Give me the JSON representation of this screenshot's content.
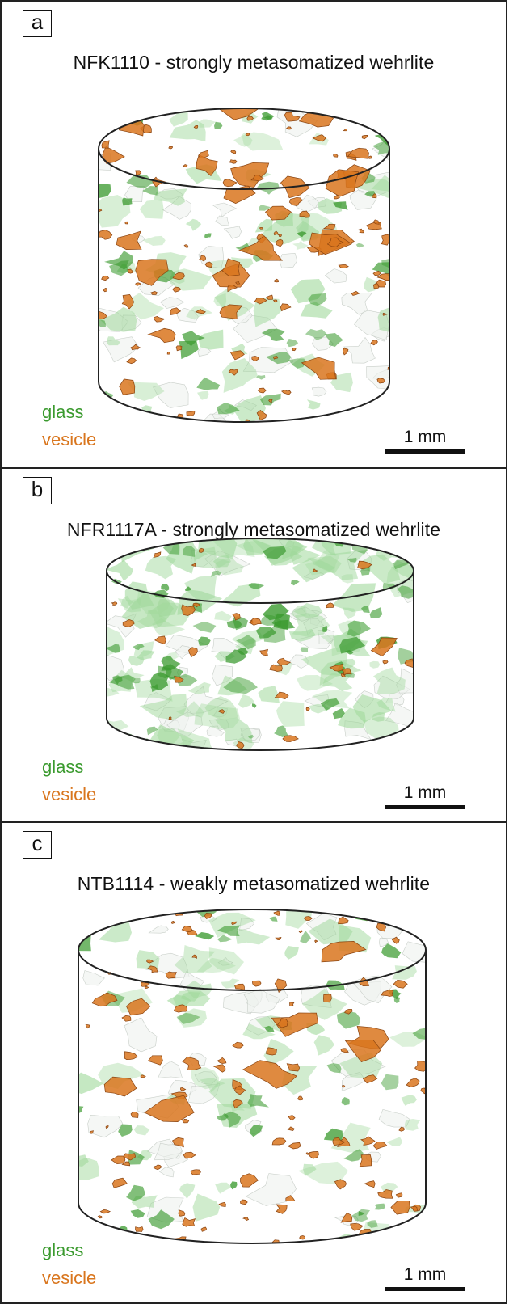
{
  "panels": [
    {
      "letter": "a",
      "title": "NFK1110 - strongly metasomatized wehrlite",
      "legend": {
        "glass": "glass",
        "vesicle": "vesicle"
      },
      "scale_label": "1 mm",
      "glass_amount": "moderate",
      "vesicle_amount": "high"
    },
    {
      "letter": "b",
      "title": "NFR1117A - strongly metasomatized wehrlite",
      "legend": {
        "glass": "glass",
        "vesicle": "vesicle"
      },
      "scale_label": "1 mm",
      "glass_amount": "high",
      "vesicle_amount": "low"
    },
    {
      "letter": "c",
      "title": "NTB1114 - weakly metasomatized wehrlite",
      "legend": {
        "glass": "glass",
        "vesicle": "vesicle"
      },
      "scale_label": "1 mm",
      "glass_amount": "moderate",
      "vesicle_amount": "high"
    }
  ],
  "colors": {
    "glass": "#3a9a2e",
    "glass_light": "#9fd89a",
    "vesicle": "#d9761e",
    "vesicle_dark": "#8a4410",
    "frame": "#222222"
  }
}
